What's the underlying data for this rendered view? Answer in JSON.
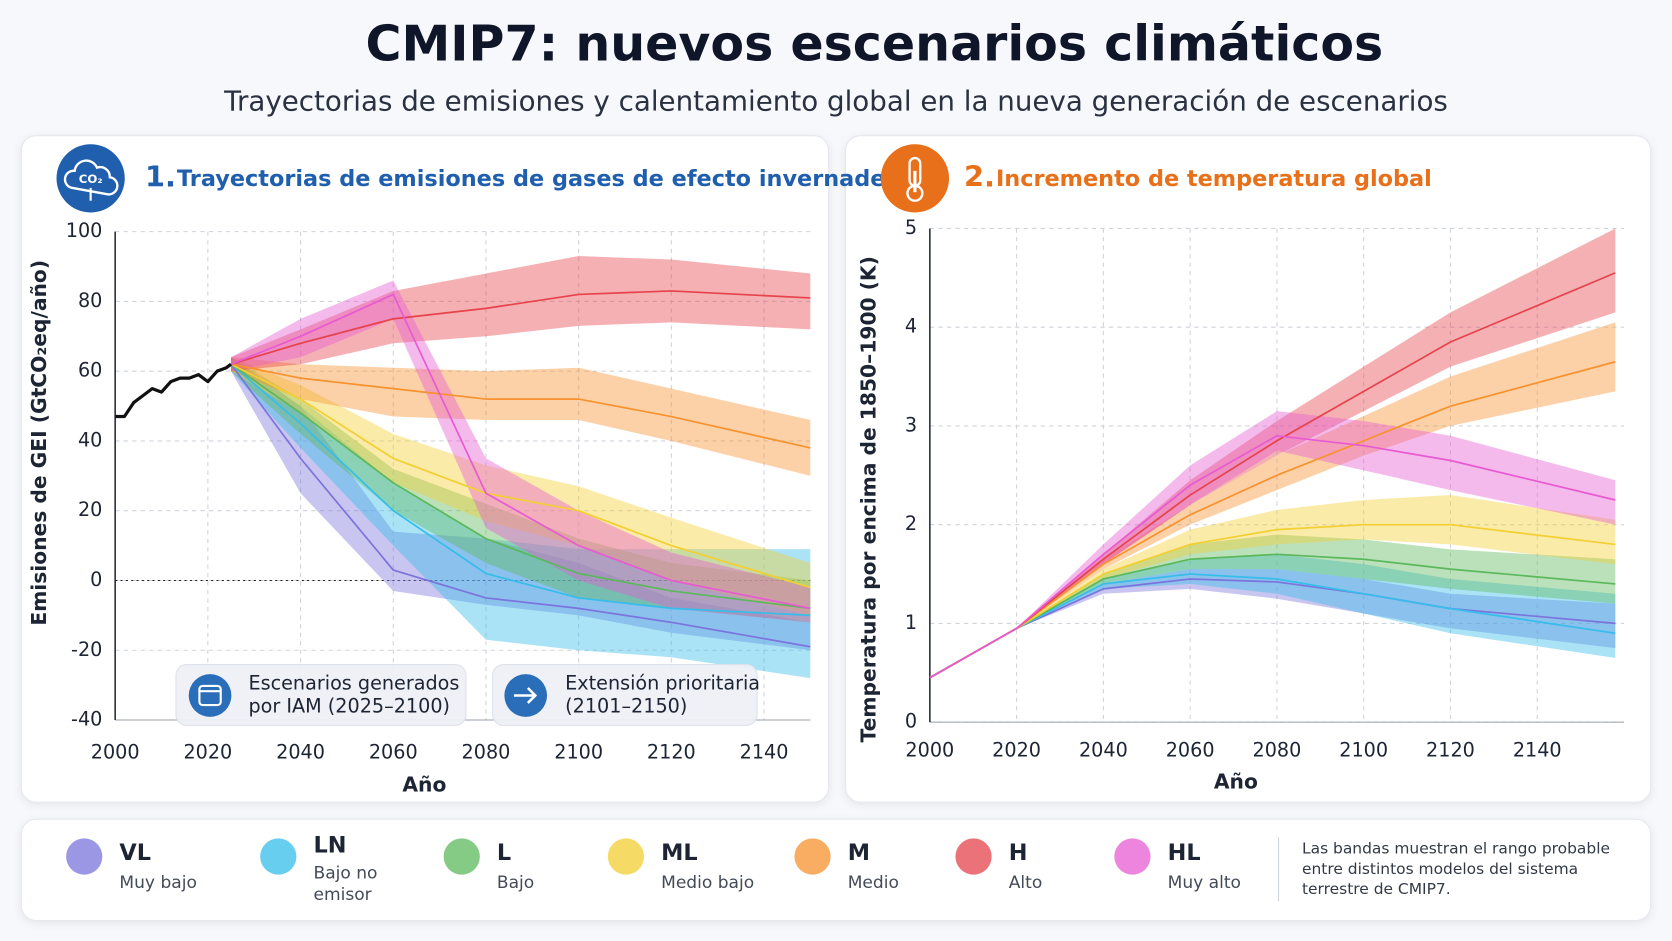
{
  "title": "CMIP7: nuevos escenarios climáticos",
  "subtitle": "Trayectorias de emisiones y calentamiento global en la nueva generación de escenarios",
  "chart_data": [
    {
      "type": "line",
      "number": "1.",
      "title": "Trayectorias de emisiones de gases de efecto invernadero",
      "icon_label": "CO₂",
      "xlabel": "Año",
      "ylabel": "Emisiones de GEI (GtCO₂eq/año)",
      "xlim": [
        2000,
        2150
      ],
      "ylim": [
        -40,
        100
      ],
      "xticks": [
        2000,
        2020,
        2040,
        2060,
        2080,
        2100,
        2120,
        2140
      ],
      "yticks": [
        -40,
        -20,
        0,
        20,
        40,
        60,
        80,
        100
      ],
      "grid": true,
      "zero_line": true,
      "band_opacity": 0.42,
      "historical": {
        "color": "#111111",
        "x": [
          2000,
          2002,
          2004,
          2006,
          2008,
          2010,
          2012,
          2014,
          2016,
          2018,
          2020,
          2022,
          2024,
          2025
        ],
        "values": [
          47,
          47,
          51,
          53,
          55,
          54,
          57,
          58,
          58,
          59,
          57,
          60,
          61,
          62
        ]
      },
      "series": [
        {
          "name": "VL",
          "color": "#7b74dc",
          "x": [
            2025,
            2040,
            2060,
            2080,
            2100,
            2120,
            2150
          ],
          "values": [
            62,
            35,
            3,
            -5,
            -8,
            -12,
            -19
          ],
          "lower": [
            60,
            25,
            -3,
            -7,
            -10,
            -15,
            -20
          ],
          "upper": [
            64,
            50,
            14,
            12,
            5,
            -5,
            -12
          ]
        },
        {
          "name": "LN",
          "color": "#36bde9",
          "x": [
            2025,
            2040,
            2060,
            2080,
            2100,
            2120,
            2150
          ],
          "values": [
            62,
            45,
            20,
            2,
            -5,
            -8,
            -10
          ],
          "lower": [
            60,
            38,
            10,
            -17,
            -20,
            -22,
            -28
          ],
          "upper": [
            64,
            50,
            28,
            12,
            9,
            9,
            9
          ]
        },
        {
          "name": "L",
          "color": "#5cb85c",
          "x": [
            2025,
            2040,
            2060,
            2080,
            2100,
            2120,
            2150
          ],
          "values": [
            62,
            48,
            28,
            12,
            2,
            -3,
            -8
          ],
          "lower": [
            60,
            42,
            20,
            5,
            -5,
            -8,
            -12
          ],
          "upper": [
            64,
            52,
            32,
            22,
            12,
            5,
            0
          ]
        },
        {
          "name": "ML",
          "color": "#f2cf33",
          "x": [
            2025,
            2040,
            2060,
            2080,
            2100,
            2120,
            2150
          ],
          "values": [
            62,
            52,
            35,
            25,
            20,
            10,
            -2
          ],
          "lower": [
            60,
            48,
            28,
            17,
            10,
            0,
            -10
          ],
          "upper": [
            64,
            56,
            42,
            33,
            27,
            18,
            5
          ]
        },
        {
          "name": "M",
          "color": "#f7922f",
          "x": [
            2025,
            2040,
            2060,
            2080,
            2100,
            2120,
            2150
          ],
          "values": [
            62,
            58,
            55,
            52,
            52,
            47,
            38
          ],
          "lower": [
            60,
            52,
            47,
            46,
            46,
            40,
            30
          ],
          "upper": [
            64,
            62,
            61,
            60,
            61,
            55,
            46
          ]
        },
        {
          "name": "H",
          "color": "#e6434d",
          "x": [
            2025,
            2040,
            2060,
            2080,
            2100,
            2120,
            2150
          ],
          "values": [
            62,
            68,
            75,
            78,
            82,
            83,
            81
          ],
          "lower": [
            60,
            62,
            68,
            70,
            73,
            74,
            72
          ],
          "upper": [
            64,
            72,
            83,
            88,
            93,
            92,
            88
          ]
        },
        {
          "name": "HL",
          "color": "#e75bd2",
          "x": [
            2025,
            2040,
            2060,
            2080,
            2100,
            2120,
            2150
          ],
          "values": [
            62,
            70,
            82,
            25,
            10,
            0,
            -8
          ],
          "lower": [
            60,
            64,
            75,
            15,
            0,
            -8,
            -12
          ],
          "upper": [
            64,
            75,
            86,
            35,
            20,
            8,
            -2
          ]
        }
      ],
      "annotations": [
        {
          "lines": [
            "Escenarios generados",
            "por IAM (2025–2100)"
          ]
        },
        {
          "lines": [
            "Extensión prioritaria",
            "(2101–2150)"
          ]
        }
      ]
    },
    {
      "type": "line",
      "number": "2.",
      "title": "Incremento de temperatura global",
      "xlabel": "Año",
      "ylabel": "Temperatura por encima de 1850–1900 (K)",
      "xlim": [
        2000,
        2160
      ],
      "ylim": [
        0,
        5
      ],
      "xticks": [
        2000,
        2020,
        2040,
        2060,
        2080,
        2100,
        2120,
        2140
      ],
      "yticks": [
        0,
        1,
        2,
        3,
        4,
        5
      ],
      "grid": true,
      "band_opacity": 0.42,
      "series": [
        {
          "name": "VL",
          "color": "#7b74dc",
          "x": [
            2000,
            2020,
            2040,
            2060,
            2080,
            2100,
            2120,
            2158
          ],
          "values": [
            0.45,
            0.95,
            1.35,
            1.45,
            1.42,
            1.3,
            1.15,
            1.0
          ],
          "lower": [
            0.45,
            0.95,
            1.3,
            1.35,
            1.25,
            1.1,
            0.95,
            0.75
          ],
          "upper": [
            0.45,
            0.95,
            1.4,
            1.55,
            1.55,
            1.45,
            1.3,
            1.2
          ]
        },
        {
          "name": "LN",
          "color": "#36bde9",
          "x": [
            2000,
            2020,
            2040,
            2060,
            2080,
            2100,
            2120,
            2158
          ],
          "values": [
            0.45,
            0.95,
            1.4,
            1.5,
            1.45,
            1.3,
            1.15,
            0.9
          ],
          "lower": [
            0.45,
            0.95,
            1.35,
            1.4,
            1.3,
            1.1,
            0.9,
            0.65
          ],
          "upper": [
            0.45,
            0.95,
            1.45,
            1.65,
            1.7,
            1.6,
            1.45,
            1.3
          ]
        },
        {
          "name": "L",
          "color": "#5cb85c",
          "x": [
            2000,
            2020,
            2040,
            2060,
            2080,
            2100,
            2120,
            2158
          ],
          "values": [
            0.45,
            0.95,
            1.45,
            1.65,
            1.7,
            1.65,
            1.55,
            1.4
          ],
          "lower": [
            0.45,
            0.95,
            1.4,
            1.55,
            1.55,
            1.45,
            1.35,
            1.2
          ],
          "upper": [
            0.45,
            0.95,
            1.5,
            1.8,
            1.9,
            1.85,
            1.75,
            1.65
          ]
        },
        {
          "name": "ML",
          "color": "#f2cf33",
          "x": [
            2000,
            2020,
            2040,
            2060,
            2080,
            2100,
            2120,
            2158
          ],
          "values": [
            0.45,
            0.95,
            1.5,
            1.8,
            1.95,
            2.0,
            2.0,
            1.8
          ],
          "lower": [
            0.45,
            0.95,
            1.45,
            1.7,
            1.8,
            1.85,
            1.8,
            1.6
          ],
          "upper": [
            0.45,
            0.95,
            1.55,
            1.95,
            2.15,
            2.25,
            2.3,
            2.05
          ]
        },
        {
          "name": "M",
          "color": "#f7922f",
          "x": [
            2000,
            2020,
            2040,
            2060,
            2080,
            2100,
            2120,
            2158
          ],
          "values": [
            0.45,
            0.95,
            1.6,
            2.1,
            2.5,
            2.85,
            3.2,
            3.65
          ],
          "lower": [
            0.45,
            0.95,
            1.55,
            2.0,
            2.35,
            2.7,
            3.0,
            3.35
          ],
          "upper": [
            0.45,
            0.95,
            1.65,
            2.2,
            2.7,
            3.1,
            3.5,
            4.05
          ]
        },
        {
          "name": "H",
          "color": "#e6434d",
          "x": [
            2000,
            2020,
            2040,
            2060,
            2080,
            2100,
            2120,
            2158
          ],
          "values": [
            0.45,
            0.95,
            1.65,
            2.3,
            2.85,
            3.35,
            3.85,
            4.55
          ],
          "lower": [
            0.45,
            0.95,
            1.6,
            2.2,
            2.7,
            3.15,
            3.6,
            4.15
          ],
          "upper": [
            0.45,
            0.95,
            1.7,
            2.45,
            3.05,
            3.6,
            4.15,
            5.0
          ]
        },
        {
          "name": "HL",
          "color": "#e75bd2",
          "x": [
            2000,
            2020,
            2040,
            2060,
            2080,
            2100,
            2120,
            2158
          ],
          "values": [
            0.45,
            0.95,
            1.7,
            2.4,
            2.9,
            2.8,
            2.65,
            2.25
          ],
          "lower": [
            0.45,
            0.95,
            1.6,
            2.2,
            2.75,
            2.55,
            2.35,
            2.0
          ],
          "upper": [
            0.45,
            0.95,
            1.8,
            2.6,
            3.15,
            3.05,
            2.9,
            2.45
          ]
        }
      ]
    }
  ],
  "legend": {
    "descriptions": [
      [
        "Muy bajo"
      ],
      [
        "Bajo no",
        "emisor"
      ],
      [
        "Bajo"
      ],
      [
        "Medio bajo"
      ],
      [
        "Medio"
      ],
      [
        "Alto"
      ],
      [
        "Muy alto"
      ]
    ],
    "note": [
      "Las bandas muestran el rango probable",
      "entre distintos modelos del sistema",
      "terrestre de CMIP7."
    ]
  }
}
